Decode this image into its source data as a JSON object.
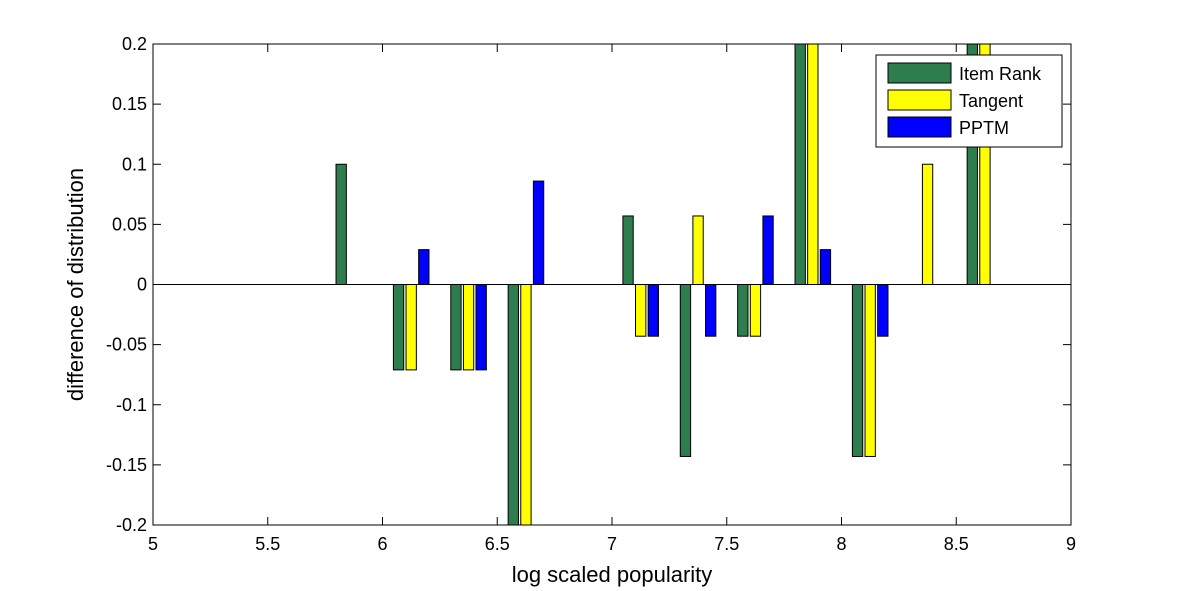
{
  "chart_data": {
    "type": "bar",
    "title": "",
    "xlabel": "log scaled popularity",
    "ylabel": "difference of distribution",
    "xlim": [
      5,
      9
    ],
    "ylim": [
      -0.2,
      0.2
    ],
    "xticks": [
      "5",
      "5.5",
      "6",
      "6.5",
      "7",
      "7.5",
      "8",
      "8.5",
      "9"
    ],
    "yticks": [
      "0.2",
      "0.15",
      "0.1",
      "0.05",
      "0",
      "-0.05",
      "-0.1",
      "-0.15",
      "-0.2"
    ],
    "grid": false,
    "legend_position": "top-right",
    "bar_width": 0.045,
    "x": [
      5.875,
      6.125,
      6.375,
      6.625,
      7.125,
      7.375,
      7.625,
      7.875,
      8.125,
      8.375,
      8.625
    ],
    "series": [
      {
        "name": "Item Rank",
        "color": "#2e7d4f",
        "offset": -0.055,
        "values": [
          0.1,
          -0.071,
          -0.071,
          -0.2,
          0.057,
          -0.143,
          -0.043,
          0.2,
          -0.143,
          0,
          0.2
        ]
      },
      {
        "name": "Tangent",
        "color": "#ffff00",
        "offset": 0,
        "values": [
          0,
          -0.071,
          -0.071,
          -0.2,
          -0.043,
          0.057,
          -0.043,
          0.2,
          -0.143,
          0.1,
          0.2
        ]
      },
      {
        "name": "PPTM",
        "color": "#0000ff",
        "offset": 0.055,
        "values": [
          0,
          0.029,
          -0.071,
          0.086,
          -0.043,
          -0.043,
          0.057,
          0.029,
          -0.043,
          0,
          0
        ]
      }
    ]
  }
}
